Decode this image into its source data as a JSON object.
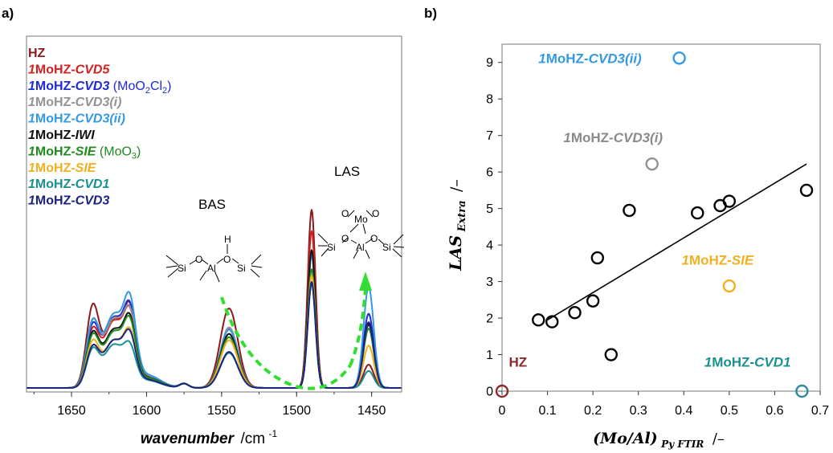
{
  "chart_data": [
    {
      "panel_label": "a)",
      "type": "line",
      "xlabel": "wavenumber",
      "xlabel_unit": "/cm",
      "xlabel_sup": "-1",
      "x_ticks": [
        "1650",
        "1600",
        "1550",
        "1500",
        "1450"
      ],
      "xlim": [
        1680,
        1430
      ],
      "x_reversed": true,
      "band_labels": [
        "BAS",
        "LAS"
      ],
      "structure_atoms": [
        "Si",
        "O",
        "Al",
        "H",
        "O",
        "Si",
        "Mo",
        "O",
        "O",
        "Si",
        "O",
        "Al",
        "O",
        "Si"
      ],
      "legend": [
        {
          "parts": [
            {
              "t": "HZ",
              "i": false,
              "b": true
            }
          ],
          "color": "#8b1a1a"
        },
        {
          "parts": [
            {
              "t": "1",
              "i": true,
              "b": true
            },
            {
              "t": "MoHZ-",
              "i": false,
              "b": true
            },
            {
              "t": "CVD5",
              "i": true,
              "b": true
            }
          ],
          "color": "#d42020"
        },
        {
          "parts": [
            {
              "t": "1",
              "i": true,
              "b": true
            },
            {
              "t": "MoHZ-",
              "i": false,
              "b": true
            },
            {
              "t": "CVD3",
              "i": true,
              "b": true
            },
            {
              "t": " (MoO",
              "i": false,
              "b": false
            },
            {
              "t": "2",
              "i": false,
              "b": false,
              "sub": true
            },
            {
              "t": "Cl",
              "i": false,
              "b": false
            },
            {
              "t": "2",
              "i": false,
              "b": false,
              "sub": true
            },
            {
              "t": ")",
              "i": false,
              "b": false
            }
          ],
          "color": "#1f2bd6"
        },
        {
          "parts": [
            {
              "t": "1",
              "i": true,
              "b": true
            },
            {
              "t": "MoHZ-",
              "i": false,
              "b": true
            },
            {
              "t": "CVD3(i)",
              "i": true,
              "b": true
            }
          ],
          "color": "#939393"
        },
        {
          "parts": [
            {
              "t": "1",
              "i": true,
              "b": true
            },
            {
              "t": "MoHZ-",
              "i": false,
              "b": true
            },
            {
              "t": "CVD3(ii)",
              "i": true,
              "b": true
            }
          ],
          "color": "#3399e6"
        },
        {
          "parts": [
            {
              "t": "1",
              "i": true,
              "b": true
            },
            {
              "t": "MoHZ-",
              "i": false,
              "b": true
            },
            {
              "t": "IWI",
              "i": true,
              "b": true
            }
          ],
          "color": "#111111"
        },
        {
          "parts": [
            {
              "t": "1",
              "i": true,
              "b": true
            },
            {
              "t": "MoHZ-",
              "i": false,
              "b": true
            },
            {
              "t": "SIE",
              "i": true,
              "b": true
            },
            {
              "t": " (MoO",
              "i": false,
              "b": false
            },
            {
              "t": "3",
              "i": false,
              "b": false,
              "sub": true
            },
            {
              "t": ")",
              "i": false,
              "b": false
            }
          ],
          "color": "#1f8a1f"
        },
        {
          "parts": [
            {
              "t": "1",
              "i": true,
              "b": true
            },
            {
              "t": "MoHZ-",
              "i": false,
              "b": true
            },
            {
              "t": "SIE",
              "i": true,
              "b": true
            }
          ],
          "color": "#f0b020"
        },
        {
          "parts": [
            {
              "t": "1",
              "i": true,
              "b": true
            },
            {
              "t": "MoHZ-",
              "i": false,
              "b": true
            },
            {
              "t": "CVD1",
              "i": true,
              "b": true
            }
          ],
          "color": "#1a9090"
        },
        {
          "parts": [
            {
              "t": "1",
              "i": true,
              "b": true
            },
            {
              "t": "MoHZ-",
              "i": false,
              "b": true
            },
            {
              "t": "CVD3",
              "i": true,
              "b": true
            }
          ],
          "color": "#1a237e"
        }
      ],
      "series": [
        {
          "color": "#8b1a1a",
          "peaks": {
            "p1636": 0.73,
            "p1622": 0.62,
            "p1613": 0.6,
            "bas": 0.75,
            "las1490": 1.68,
            "las1452": 0.22
          }
        },
        {
          "color": "#d42020",
          "peaks": {
            "p1636": 0.51,
            "p1622": 0.62,
            "p1613": 0.56,
            "bas": 0.57,
            "las1490": 1.48,
            "las1452": 0.62
          }
        },
        {
          "color": "#1f2bd6",
          "peaks": {
            "p1636": 0.55,
            "p1622": 0.65,
            "p1613": 0.6,
            "bas": 0.56,
            "las1490": 1.26,
            "las1452": 0.7
          }
        },
        {
          "color": "#939393",
          "peaks": {
            "p1636": 0.59,
            "p1622": 0.64,
            "p1613": 0.56,
            "bas": 0.57,
            "las1490": 1.26,
            "las1452": 0.6
          }
        },
        {
          "color": "#3399e6",
          "peaks": {
            "p1636": 0.58,
            "p1622": 0.68,
            "p1613": 0.67,
            "bas": 0.55,
            "las1490": 1.28,
            "las1452": 0.95
          }
        },
        {
          "color": "#111111",
          "peaks": {
            "p1636": 0.48,
            "p1622": 0.54,
            "p1613": 0.52,
            "bas": 0.51,
            "las1490": 1.3,
            "las1452": 0.6
          }
        },
        {
          "color": "#1f8a1f",
          "peaks": {
            "p1636": 0.46,
            "p1622": 0.52,
            "p1613": 0.5,
            "bas": 0.48,
            "las1490": 1.12,
            "las1452": 0.56
          }
        },
        {
          "color": "#f0b020",
          "peaks": {
            "p1636": 0.41,
            "p1622": 0.44,
            "p1613": 0.42,
            "bas": 0.45,
            "las1490": 1.06,
            "las1452": 0.4
          }
        },
        {
          "color": "#1a9090",
          "peaks": {
            "p1636": 0.34,
            "p1622": 0.4,
            "p1613": 0.3,
            "bas": 0.33,
            "las1490": 0.98,
            "las1452": 0.16
          }
        },
        {
          "color": "#1a237e",
          "peaks": {
            "p1636": 0.36,
            "p1622": 0.44,
            "p1613": 0.4,
            "bas": 0.34,
            "las1490": 1.0,
            "las1452": 0.62
          }
        }
      ]
    },
    {
      "panel_label": "b)",
      "type": "scatter",
      "xlabel": "(Mo/Al)",
      "xlabel_sub": "Py FTIR",
      "xlabel_unit": "/–",
      "ylabel": "LAS",
      "ylabel_sub": "Extra",
      "ylabel_unit": "/–",
      "xlim": [
        0,
        0.7
      ],
      "ylim": [
        0,
        9.5
      ],
      "x_ticks": [
        "0",
        "0.1",
        "0.2",
        "0.3",
        "0.4",
        "0.5",
        "0.6",
        "0.7"
      ],
      "y_ticks": [
        "0",
        "1",
        "2",
        "3",
        "4",
        "5",
        "6",
        "7",
        "8",
        "9"
      ],
      "points": [
        {
          "x": 0.08,
          "y": 1.95,
          "color": "#000000"
        },
        {
          "x": 0.11,
          "y": 1.9,
          "color": "#000000"
        },
        {
          "x": 0.16,
          "y": 2.15,
          "color": "#000000"
        },
        {
          "x": 0.2,
          "y": 2.47,
          "color": "#000000"
        },
        {
          "x": 0.21,
          "y": 3.65,
          "color": "#000000"
        },
        {
          "x": 0.24,
          "y": 1.0,
          "color": "#000000"
        },
        {
          "x": 0.28,
          "y": 4.95,
          "color": "#000000"
        },
        {
          "x": 0.43,
          "y": 4.88,
          "color": "#000000"
        },
        {
          "x": 0.48,
          "y": 5.08,
          "color": "#000000"
        },
        {
          "x": 0.5,
          "y": 5.2,
          "color": "#000000"
        },
        {
          "x": 0.67,
          "y": 5.5,
          "color": "#000000"
        },
        {
          "x": 0.0,
          "y": 0.0,
          "color": "#8b2a2a"
        },
        {
          "x": 0.66,
          "y": 0.0,
          "color": "#2a8a9a"
        },
        {
          "x": 0.33,
          "y": 6.22,
          "color": "#939393"
        },
        {
          "x": 0.5,
          "y": 2.88,
          "color": "#f0b020"
        },
        {
          "x": 0.39,
          "y": 9.12,
          "color": "#3399e6"
        }
      ],
      "trendline": [
        [
          0.1,
          1.95
        ],
        [
          0.67,
          6.22
        ]
      ],
      "annotations": [
        {
          "parts": [
            {
              "t": "1",
              "i": true
            },
            {
              "t": "MoHZ-",
              "i": false
            },
            {
              "t": "CVD3(ii)",
              "i": true
            }
          ],
          "color": "#3399e6",
          "x": 0.08,
          "y": 9.12
        },
        {
          "parts": [
            {
              "t": "1",
              "i": true
            },
            {
              "t": "MoHZ-",
              "i": false
            },
            {
              "t": "CVD3(i)",
              "i": true
            }
          ],
          "color": "#8a8a8a",
          "x": 0.135,
          "y": 6.95
        },
        {
          "parts": [
            {
              "t": "1",
              "i": true
            },
            {
              "t": "MoHZ-",
              "i": false
            },
            {
              "t": "SIE",
              "i": true
            }
          ],
          "color": "#f0b020",
          "x": 0.395,
          "y": 3.6
        },
        {
          "parts": [
            {
              "t": "HZ",
              "i": false
            }
          ],
          "color": "#8b2a2a",
          "x": 0.015,
          "y": 0.8
        },
        {
          "parts": [
            {
              "t": "1",
              "i": true
            },
            {
              "t": "MoHZ-",
              "i": false
            },
            {
              "t": "CVD1",
              "i": true
            }
          ],
          "color": "#1a9090",
          "x": 0.445,
          "y": 0.8
        }
      ]
    }
  ]
}
